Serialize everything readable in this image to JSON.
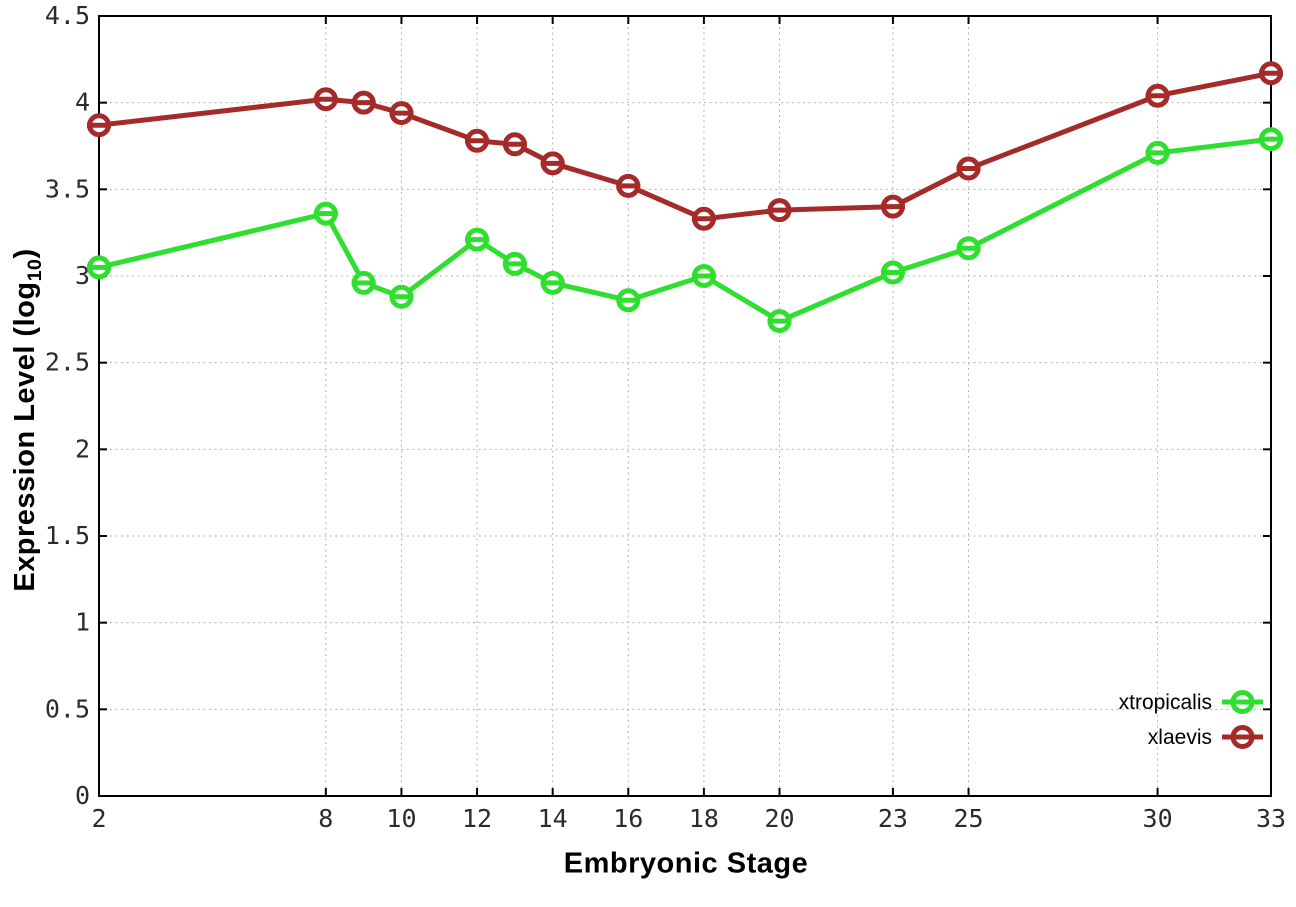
{
  "labels": {
    "xlabel": "Embryonic Stage",
    "ylabel_pre": "Expression Level (log",
    "ylabel_sub": "10",
    "ylabel_post": ")"
  },
  "chart_data": {
    "type": "line",
    "title": "",
    "xlabel": "Embryonic Stage",
    "ylabel": "Expression Level (log10)",
    "x": [
      2,
      8,
      9,
      10,
      12,
      13,
      14,
      16,
      18,
      20,
      23,
      25,
      30,
      33
    ],
    "series": [
      {
        "name": "xtropicalis",
        "color": "#2fdf2f",
        "values": [
          3.05,
          3.36,
          2.96,
          2.88,
          3.21,
          3.07,
          2.96,
          2.86,
          3.0,
          2.74,
          3.02,
          3.16,
          3.71,
          3.79
        ]
      },
      {
        "name": "xlaevis",
        "color": "#a52a2a",
        "values": [
          3.87,
          4.02,
          4.0,
          3.94,
          3.78,
          3.76,
          3.65,
          3.52,
          3.33,
          3.38,
          3.4,
          3.62,
          4.04,
          4.17
        ]
      }
    ],
    "x_ticks": [
      2,
      8,
      10,
      12,
      14,
      16,
      18,
      20,
      23,
      25,
      30,
      33
    ],
    "y_ticks": [
      0,
      0.5,
      1,
      1.5,
      2,
      2.5,
      3,
      3.5,
      4,
      4.5
    ],
    "xlim": [
      2,
      33
    ],
    "ylim": [
      0,
      4.5
    ],
    "grid": true,
    "grid_style": "dotted",
    "legend_position": "inside-bottom-right",
    "marker": "open-circle-horizontal-dash",
    "line_width": 5,
    "background": "#ffffff",
    "border_color": "#000000",
    "tick_label_color": "#2b2b2b",
    "grid_color": "#b3b3b3"
  }
}
